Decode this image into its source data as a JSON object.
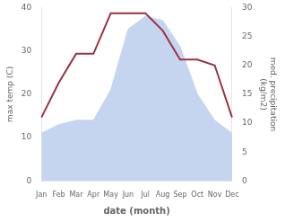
{
  "chart_data": {
    "type": "line",
    "categories": [
      "Jan",
      "Feb",
      "Mar",
      "Apr",
      "May",
      "Jun",
      "Jul",
      "Aug",
      "Sep",
      "Oct",
      "Nov",
      "Dec"
    ],
    "series": [
      {
        "type": "area",
        "color": "#c5d5f0",
        "values": [
          11,
          13,
          14,
          14,
          21,
          35,
          38,
          37,
          31,
          20,
          14,
          11
        ]
      },
      {
        "type": "line",
        "color": "#993344",
        "axis": "y2",
        "values": [
          11,
          17,
          22,
          22,
          29,
          29,
          29,
          26,
          21,
          21,
          20,
          11
        ]
      }
    ],
    "xlabel": "date (month)",
    "ylabel": "max temp (C)",
    "y2label": "med. precipitation\n(kg/m2)",
    "ylim": [
      0,
      40
    ],
    "yticks": [
      0,
      10,
      20,
      30,
      40
    ],
    "y2lim": [
      0,
      30
    ],
    "y2ticks": [
      0,
      5,
      10,
      15,
      20,
      25,
      30
    ],
    "grid": false
  }
}
